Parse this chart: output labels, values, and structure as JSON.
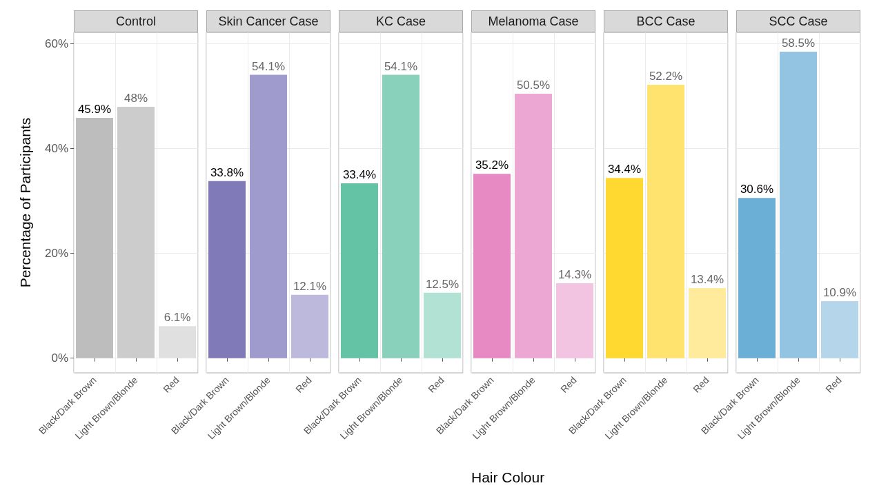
{
  "chart_data": [
    {
      "type": "bar",
      "title": "Control",
      "ylabel": "Percentage of Participants",
      "categories": [
        "Black/Dark Brown",
        "Light Brown/Blonde",
        "Red"
      ],
      "values": [
        45.9,
        48,
        6.1
      ],
      "value_labels": [
        "45.9%",
        "48%",
        "6.1%"
      ],
      "colors": [
        "#bdbdbd",
        "#cccccc",
        "#e0e0e0"
      ],
      "ylim": [
        -2.8,
        62.2
      ],
      "yticks": [
        {
          "value": 0,
          "label": "0%"
        },
        {
          "value": 20,
          "label": "20%"
        },
        {
          "value": 40,
          "label": "40%"
        },
        {
          "value": 60,
          "label": "60%"
        }
      ],
      "grid": true
    },
    {
      "type": "bar",
      "title": "Skin Cancer Case",
      "categories": [
        "Black/Dark Brown",
        "Light Brown/Blonde",
        "Red"
      ],
      "values": [
        33.8,
        54.1,
        12.1
      ],
      "value_labels": [
        "33.8%",
        "54.1%",
        "12.1%"
      ],
      "colors": [
        "#807ab8",
        "#9f9bcc",
        "#bcb9dc"
      ],
      "ylim": [
        -2.8,
        62.2
      ],
      "yticks": [
        {
          "value": 0,
          "label": null
        },
        {
          "value": 20,
          "label": null
        },
        {
          "value": 40,
          "label": null
        },
        {
          "value": 60,
          "label": null
        }
      ],
      "grid": true,
      "tick_labels": "x"
    },
    {
      "type": "bar",
      "title": "KC Case",
      "categories": [
        "Black/Dark Brown",
        "Light Brown/Blonde",
        "Red"
      ],
      "values": [
        33.4,
        54.1,
        12.5
      ],
      "value_labels": [
        "33.4%",
        "54.1%",
        "12.5%"
      ],
      "colors": [
        "#64c3a5",
        "#8ad1bb",
        "#b2e2d4"
      ],
      "ylim": [
        -2.8,
        62.2
      ],
      "yticks": [
        {
          "value": 0,
          "label": null
        },
        {
          "value": 20,
          "label": null
        },
        {
          "value": 40,
          "label": null
        },
        {
          "value": 60,
          "label": null
        }
      ],
      "grid": true,
      "tick_labels": "x"
    },
    {
      "type": "bar",
      "title": "Melanoma Case",
      "xlabel": "Hair Colour",
      "categories": [
        "Black/Dark Brown",
        "Light Brown/Blonde",
        "Red"
      ],
      "values": [
        35.2,
        50.5,
        14.3
      ],
      "value_labels": [
        "35.2%",
        "50.5%",
        "14.3%"
      ],
      "colors": [
        "#e78ac3",
        "#eda7d3",
        "#f2c4e2"
      ],
      "ylim": [
        -2.8,
        62.2
      ],
      "yticks": [
        {
          "value": 0,
          "label": null
        },
        {
          "value": 20,
          "label": null
        },
        {
          "value": 40,
          "label": null
        },
        {
          "value": 60,
          "label": null
        }
      ],
      "grid": true,
      "tick_labels": "x"
    },
    {
      "type": "bar",
      "title": "BCC Case",
      "categories": [
        "Black/Dark Brown",
        "Light Brown/Blonde",
        "Red"
      ],
      "values": [
        34.4,
        52.2,
        13.4
      ],
      "value_labels": [
        "34.4%",
        "52.2%",
        "13.4%"
      ],
      "colors": [
        "#ffd92f",
        "#ffe36e",
        "#ffeb9b"
      ],
      "ylim": [
        -2.8,
        62.2
      ],
      "yticks": [
        {
          "value": 0,
          "label": null
        },
        {
          "value": 20,
          "label": null
        },
        {
          "value": 40,
          "label": null
        },
        {
          "value": 60,
          "label": null
        }
      ],
      "grid": true,
      "tick_labels": "x"
    },
    {
      "type": "bar",
      "title": "SCC Case",
      "categories": [
        "Black/Dark Brown",
        "Light Brown/Blonde",
        "Red"
      ],
      "values": [
        30.6,
        58.5,
        10.9
      ],
      "value_labels": [
        "30.6%",
        "58.5%",
        "10.9%"
      ],
      "colors": [
        "#6baed6",
        "#93c4e1",
        "#b5d6ea"
      ],
      "ylim": [
        -2.8,
        62.2
      ],
      "yticks": [
        {
          "value": 0,
          "label": null
        },
        {
          "value": 20,
          "label": null
        },
        {
          "value": 40,
          "label": null
        },
        {
          "value": 60,
          "label": null
        }
      ],
      "grid": true,
      "tick_labels": "x"
    }
  ]
}
